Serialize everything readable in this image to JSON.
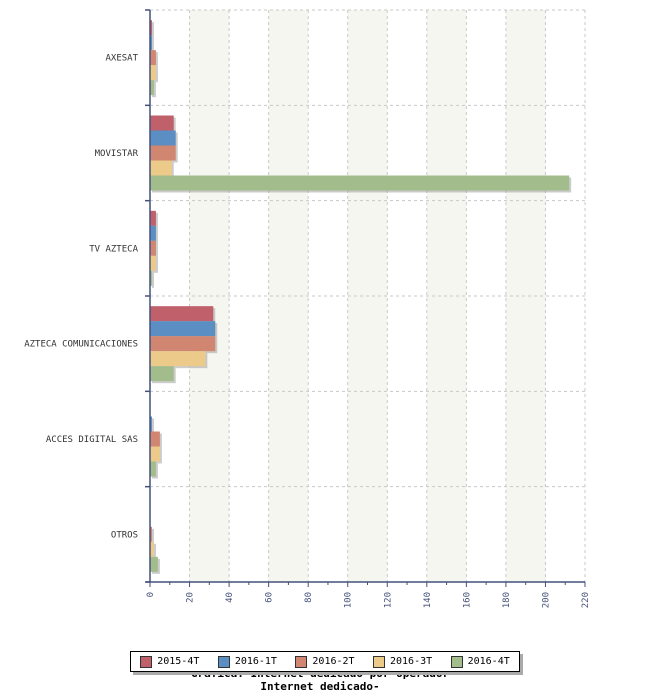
{
  "chart_data": {
    "type": "bar",
    "orientation": "horizontal",
    "title": "Grafica: Internet dedicado por operador",
    "subtitle": "Internet dedicado-",
    "categories": [
      "AXESAT",
      "MOVISTAR",
      "TV AZTECA",
      "AZTECA COMUNICACIONES",
      "ACCES DIGITAL SAS",
      "OTROS"
    ],
    "series": [
      {
        "name": "2015-4T",
        "color": "#c0606a",
        "values": [
          1,
          12,
          3,
          32,
          0,
          0
        ]
      },
      {
        "name": "2016-1T",
        "color": "#5b8ec2",
        "values": [
          1,
          13,
          3,
          33,
          1,
          0
        ]
      },
      {
        "name": "2016-2T",
        "color": "#d08670",
        "values": [
          3,
          13,
          3,
          33,
          5,
          1
        ]
      },
      {
        "name": "2016-3T",
        "color": "#ecca8a",
        "values": [
          3,
          11,
          3,
          28,
          5,
          2
        ]
      },
      {
        "name": "2016-4T",
        "color": "#a3bc8c",
        "values": [
          2,
          212,
          1,
          12,
          3,
          4
        ]
      }
    ],
    "xlim": [
      0,
      220
    ],
    "xticks": [
      "0",
      "20",
      "40",
      "60",
      "80",
      "100",
      "120",
      "140",
      "160",
      "180",
      "200",
      "220"
    ],
    "grid": true,
    "legend_position": "bottom"
  }
}
